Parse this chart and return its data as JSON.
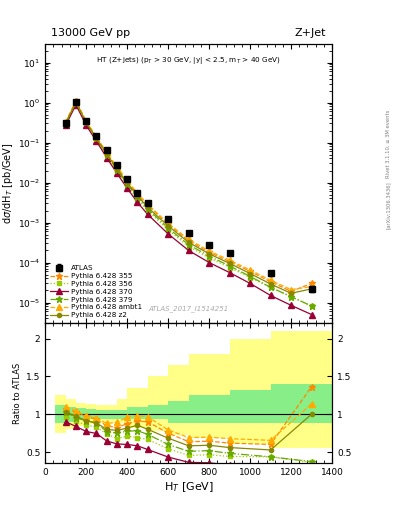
{
  "title_left": "13000 GeV pp",
  "title_right": "Z+Jet",
  "ylabel_main": "dσ/dH$_{T}$ [pb/GeV]",
  "ylabel_ratio": "Ratio to ATLAS",
  "xlabel": "H$_{T}$ [GeV]",
  "watermark": "ATLAS_2017_I1514251",
  "right_label1": "Rivet 3.1.10, ≥ 3M events",
  "right_label2": "[arXiv:1306.3436]",
  "annotation": "HT (Z+jets) (p$_{T}$ > 30 GeV, |y| < 2.5, m$_{T}$ > 40 GeV)",
  "xlim": [
    0,
    1400
  ],
  "ylim_main": [
    3e-06,
    30
  ],
  "ylim_ratio": [
    0.35,
    2.2
  ],
  "atlas_x": [
    100,
    150,
    200,
    250,
    300,
    350,
    400,
    450,
    500,
    600,
    700,
    800,
    900,
    1100,
    1300
  ],
  "atlas_y": [
    0.3,
    1.05,
    0.35,
    0.145,
    0.065,
    0.028,
    0.012,
    0.0055,
    0.003,
    0.0012,
    0.00055,
    0.00028,
    0.00017,
    5.5e-05,
    2.2e-05
  ],
  "atlas_ey": [
    0.05,
    0.1,
    0.04,
    0.015,
    0.006,
    0.003,
    0.001,
    0.0006,
    0.0003,
    0.00012,
    6e-05,
    3e-05,
    2e-05,
    8e-06,
    4e-06
  ],
  "py355_x": [
    100,
    150,
    200,
    250,
    300,
    350,
    400,
    450,
    500,
    600,
    700,
    800,
    900,
    1000,
    1100,
    1200,
    1300
  ],
  "py355_y": [
    0.32,
    1.08,
    0.34,
    0.135,
    0.055,
    0.023,
    0.0105,
    0.005,
    0.0027,
    0.0009,
    0.00035,
    0.00018,
    0.000105,
    6e-05,
    3.3e-05,
    1.9e-05,
    3e-05
  ],
  "py355_color": "#FF8800",
  "py355_label": "Pythia 6.428 355",
  "py355_marker": "*",
  "py355_ls": "--",
  "py356_x": [
    100,
    150,
    200,
    250,
    300,
    350,
    400,
    450,
    500,
    600,
    700,
    800,
    900,
    1000,
    1100,
    1200,
    1300
  ],
  "py356_y": [
    0.29,
    0.95,
    0.3,
    0.12,
    0.048,
    0.019,
    0.0085,
    0.0038,
    0.002,
    0.00065,
    0.00025,
    0.00013,
    7.5e-05,
    4.2e-05,
    2.4e-05,
    1.4e-05,
    8e-06
  ],
  "py356_color": "#99CC00",
  "py356_label": "Pythia 6.428 356",
  "py356_marker": "s",
  "py356_ls": ":",
  "py370_x": [
    100,
    150,
    200,
    250,
    300,
    350,
    400,
    450,
    500,
    600,
    700,
    800,
    900,
    1000,
    1100,
    1200,
    1300
  ],
  "py370_y": [
    0.27,
    0.88,
    0.27,
    0.108,
    0.042,
    0.017,
    0.0072,
    0.0032,
    0.0016,
    0.00052,
    0.0002,
    0.0001,
    5.6e-05,
    3e-05,
    1.5e-05,
    8.5e-06,
    5e-06
  ],
  "py370_color": "#990033",
  "py370_label": "Pythia 6.428 370",
  "py370_marker": "^",
  "py370_ls": "-",
  "py379_x": [
    100,
    150,
    200,
    250,
    300,
    350,
    400,
    450,
    500,
    600,
    700,
    800,
    900,
    1000,
    1100,
    1200,
    1300
  ],
  "py379_y": [
    0.31,
    1.0,
    0.32,
    0.128,
    0.05,
    0.021,
    0.0093,
    0.0043,
    0.0022,
    0.00072,
    0.00028,
    0.000145,
    8.2e-05,
    4.5e-05,
    2.4e-05,
    1.4e-05,
    8.2e-06
  ],
  "py379_color": "#66AA00",
  "py379_label": "Pythia 6.428 379",
  "py379_marker": "*",
  "py379_ls": "-.",
  "pyambt_x": [
    100,
    150,
    200,
    250,
    300,
    350,
    400,
    450,
    500,
    600,
    700,
    800,
    900,
    1000,
    1100,
    1200,
    1300
  ],
  "pyambt_y": [
    0.33,
    1.1,
    0.34,
    0.138,
    0.057,
    0.025,
    0.0115,
    0.0054,
    0.0029,
    0.00095,
    0.00038,
    0.000195,
    0.000115,
    6.5e-05,
    3.6e-05,
    2.1e-05,
    2.5e-05
  ],
  "pyambt_color": "#FFAA00",
  "pyambt_label": "Pythia 6.428 ambt1",
  "pyambt_marker": "^",
  "pyambt_ls": "--",
  "pyz2_x": [
    100,
    150,
    200,
    250,
    300,
    350,
    400,
    450,
    500,
    600,
    700,
    800,
    900,
    1000,
    1100,
    1200,
    1300
  ],
  "pyz2_y": [
    0.31,
    1.02,
    0.32,
    0.128,
    0.052,
    0.022,
    0.0098,
    0.0047,
    0.0024,
    0.00082,
    0.00032,
    0.000165,
    9.5e-05,
    5.3e-05,
    2.9e-05,
    1.7e-05,
    2.2e-05
  ],
  "pyz2_color": "#888800",
  "pyz2_label": "Pythia 6.428 z2",
  "pyz2_marker": "o",
  "pyz2_ls": "-",
  "ratio_ylim": [
    0.35,
    2.2
  ],
  "ratio_yticks": [
    0.5,
    1.0,
    1.5,
    2.0
  ],
  "band_x_edges": [
    50,
    100,
    150,
    200,
    250,
    300,
    350,
    400,
    500,
    600,
    700,
    900,
    1100,
    1300,
    1400
  ],
  "band_inner_lo": [
    0.88,
    0.9,
    0.92,
    0.93,
    0.94,
    0.94,
    0.94,
    0.94,
    0.94,
    0.88,
    0.88,
    0.88,
    0.88,
    0.88
  ],
  "band_inner_hi": [
    1.12,
    1.1,
    1.08,
    1.07,
    1.06,
    1.06,
    1.06,
    1.1,
    1.12,
    1.18,
    1.25,
    1.32,
    1.4,
    1.4
  ],
  "band_outer_lo": [
    0.75,
    0.8,
    0.85,
    0.87,
    0.88,
    0.88,
    0.88,
    0.82,
    0.78,
    0.72,
    0.68,
    0.6,
    0.55,
    0.55
  ],
  "band_outer_hi": [
    1.25,
    1.2,
    1.15,
    1.13,
    1.12,
    1.12,
    1.2,
    1.35,
    1.5,
    1.65,
    1.8,
    2.0,
    2.1,
    2.1
  ]
}
